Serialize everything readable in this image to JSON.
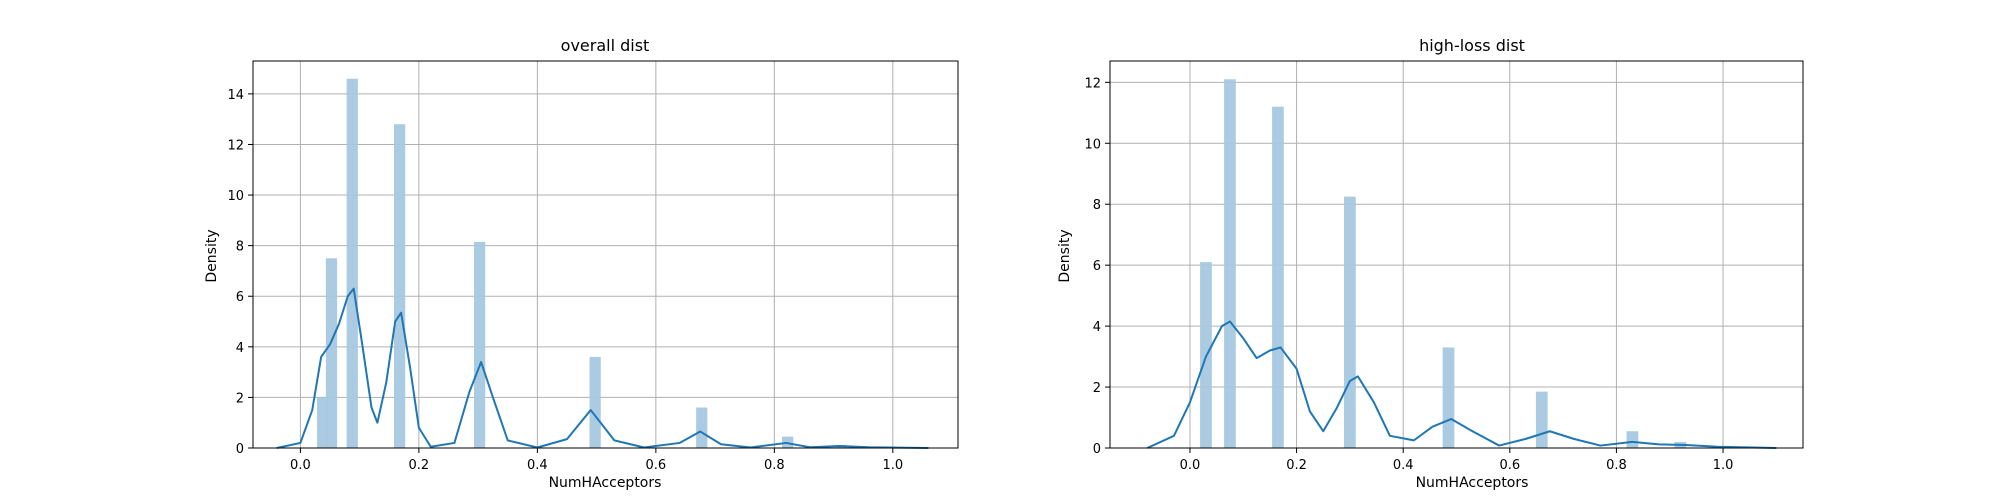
{
  "chart_data": [
    {
      "type": "histogram+kde",
      "title": "overall dist",
      "xlabel": "NumHAcceptors",
      "ylabel": "Density",
      "xlim": [
        -0.08,
        1.11
      ],
      "ylim": [
        0,
        15.3
      ],
      "xticks": [
        0.0,
        0.2,
        0.4,
        0.6,
        0.8,
        1.0
      ],
      "xtick_labels": [
        "0.0",
        "0.2",
        "0.4",
        "0.6",
        "0.8",
        "1.0"
      ],
      "yticks": [
        0,
        2,
        4,
        6,
        8,
        10,
        12,
        14
      ],
      "ytick_labels": [
        "0",
        "2",
        "4",
        "6",
        "8",
        "10",
        "12",
        "14"
      ],
      "grid": true,
      "bar_color": "#a6c8e0",
      "line_color": "#1f77b4",
      "bars": [
        {
          "x": 0.0375,
          "value": 2.0
        },
        {
          "x": 0.0525,
          "value": 7.5
        },
        {
          "x": 0.0875,
          "value": 14.6
        },
        {
          "x": 0.1675,
          "value": 12.8
        },
        {
          "x": 0.3025,
          "value": 8.15
        },
        {
          "x": 0.4975,
          "value": 3.6
        },
        {
          "x": 0.6775,
          "value": 1.6
        },
        {
          "x": 0.8225,
          "value": 0.45
        },
        {
          "x": 0.9125,
          "value": 0.12
        }
      ],
      "bar_width": 0.019,
      "kde": [
        {
          "x": -0.04,
          "y": 0.0
        },
        {
          "x": 0.0,
          "y": 0.2
        },
        {
          "x": 0.02,
          "y": 1.5
        },
        {
          "x": 0.035,
          "y": 3.6
        },
        {
          "x": 0.05,
          "y": 4.1
        },
        {
          "x": 0.065,
          "y": 4.9
        },
        {
          "x": 0.08,
          "y": 6.0
        },
        {
          "x": 0.09,
          "y": 6.3
        },
        {
          "x": 0.105,
          "y": 4.0
        },
        {
          "x": 0.12,
          "y": 1.6
        },
        {
          "x": 0.13,
          "y": 1.0
        },
        {
          "x": 0.145,
          "y": 2.6
        },
        {
          "x": 0.16,
          "y": 5.0
        },
        {
          "x": 0.17,
          "y": 5.35
        },
        {
          "x": 0.185,
          "y": 3.2
        },
        {
          "x": 0.2,
          "y": 0.8
        },
        {
          "x": 0.22,
          "y": 0.05
        },
        {
          "x": 0.26,
          "y": 0.2
        },
        {
          "x": 0.285,
          "y": 2.2
        },
        {
          "x": 0.305,
          "y": 3.4
        },
        {
          "x": 0.325,
          "y": 2.0
        },
        {
          "x": 0.35,
          "y": 0.3
        },
        {
          "x": 0.4,
          "y": 0.02
        },
        {
          "x": 0.45,
          "y": 0.35
        },
        {
          "x": 0.49,
          "y": 1.5
        },
        {
          "x": 0.53,
          "y": 0.3
        },
        {
          "x": 0.58,
          "y": 0.02
        },
        {
          "x": 0.64,
          "y": 0.2
        },
        {
          "x": 0.675,
          "y": 0.65
        },
        {
          "x": 0.71,
          "y": 0.15
        },
        {
          "x": 0.76,
          "y": 0.02
        },
        {
          "x": 0.82,
          "y": 0.2
        },
        {
          "x": 0.86,
          "y": 0.03
        },
        {
          "x": 0.91,
          "y": 0.08
        },
        {
          "x": 0.96,
          "y": 0.03
        },
        {
          "x": 1.06,
          "y": 0.0
        }
      ]
    },
    {
      "type": "histogram+kde",
      "title": "high-loss dist",
      "xlabel": "NumHAcceptors",
      "ylabel": "Density",
      "xlim": [
        -0.15,
        1.15
      ],
      "ylim": [
        0,
        12.7
      ],
      "xticks": [
        0.0,
        0.2,
        0.4,
        0.6,
        0.8,
        1.0
      ],
      "xtick_labels": [
        "0.0",
        "0.2",
        "0.4",
        "0.6",
        "0.8",
        "1.0"
      ],
      "yticks": [
        0,
        2,
        4,
        6,
        8,
        10,
        12
      ],
      "ytick_labels": [
        "0",
        "2",
        "4",
        "6",
        "8",
        "10",
        "12"
      ],
      "grid": true,
      "bar_color": "#a6c8e0",
      "line_color": "#1f77b4",
      "bars": [
        {
          "x": 0.03,
          "value": 6.1
        },
        {
          "x": 0.075,
          "value": 12.1
        },
        {
          "x": 0.165,
          "value": 11.2
        },
        {
          "x": 0.3,
          "value": 8.25
        },
        {
          "x": 0.485,
          "value": 3.3
        },
        {
          "x": 0.66,
          "value": 1.85
        },
        {
          "x": 0.83,
          "value": 0.55
        },
        {
          "x": 0.92,
          "value": 0.2
        }
      ],
      "bar_width": 0.022,
      "kde": [
        {
          "x": -0.08,
          "y": 0.0
        },
        {
          "x": -0.03,
          "y": 0.4
        },
        {
          "x": 0.0,
          "y": 1.5
        },
        {
          "x": 0.03,
          "y": 3.0
        },
        {
          "x": 0.06,
          "y": 4.0
        },
        {
          "x": 0.075,
          "y": 4.15
        },
        {
          "x": 0.1,
          "y": 3.6
        },
        {
          "x": 0.125,
          "y": 2.95
        },
        {
          "x": 0.15,
          "y": 3.2
        },
        {
          "x": 0.17,
          "y": 3.3
        },
        {
          "x": 0.2,
          "y": 2.6
        },
        {
          "x": 0.225,
          "y": 1.2
        },
        {
          "x": 0.25,
          "y": 0.55
        },
        {
          "x": 0.275,
          "y": 1.3
        },
        {
          "x": 0.3,
          "y": 2.2
        },
        {
          "x": 0.315,
          "y": 2.35
        },
        {
          "x": 0.345,
          "y": 1.5
        },
        {
          "x": 0.375,
          "y": 0.4
        },
        {
          "x": 0.42,
          "y": 0.25
        },
        {
          "x": 0.455,
          "y": 0.7
        },
        {
          "x": 0.49,
          "y": 0.95
        },
        {
          "x": 0.53,
          "y": 0.55
        },
        {
          "x": 0.58,
          "y": 0.08
        },
        {
          "x": 0.63,
          "y": 0.3
        },
        {
          "x": 0.675,
          "y": 0.55
        },
        {
          "x": 0.72,
          "y": 0.3
        },
        {
          "x": 0.77,
          "y": 0.08
        },
        {
          "x": 0.83,
          "y": 0.2
        },
        {
          "x": 0.88,
          "y": 0.12
        },
        {
          "x": 0.93,
          "y": 0.1
        },
        {
          "x": 0.99,
          "y": 0.04
        },
        {
          "x": 1.1,
          "y": 0.0
        }
      ]
    }
  ]
}
